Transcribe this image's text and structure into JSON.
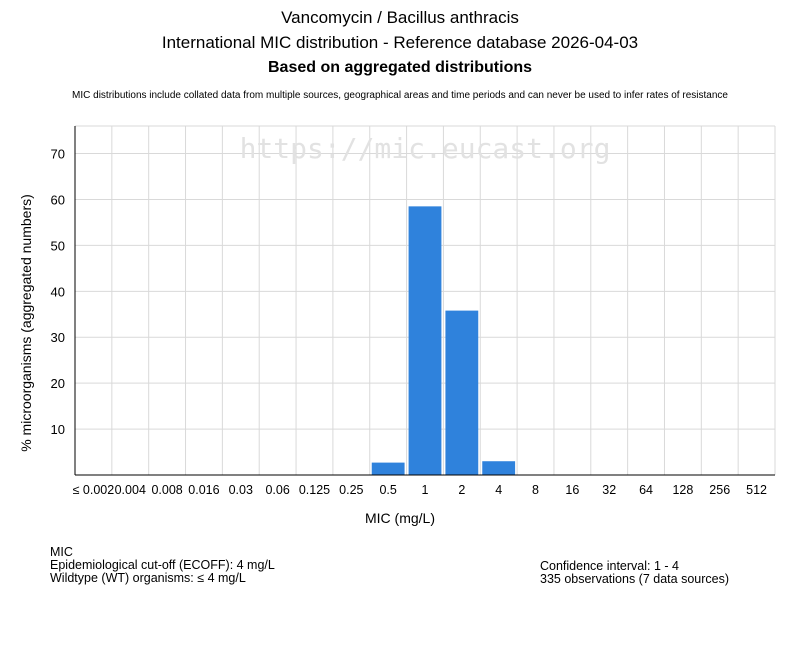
{
  "header": {
    "title": "Vancomycin / Bacillus anthracis",
    "subtitle": "International MIC distribution - Reference database 2026-04-03",
    "subtitle2": "Based on aggregated distributions",
    "disclaimer": "MIC distributions include collated data from multiple sources, geographical areas and time periods and can never be used to infer rates of resistance"
  },
  "watermark": "https://mic.eucast.org",
  "chart_data": {
    "type": "bar",
    "categories": [
      "≤ 0.002",
      "0.004",
      "0.008",
      "0.016",
      "0.03",
      "0.06",
      "0.125",
      "0.25",
      "0.5",
      "1",
      "2",
      "4",
      "8",
      "16",
      "32",
      "64",
      "128",
      "256",
      "512"
    ],
    "values": [
      0,
      0,
      0,
      0,
      0,
      0,
      0,
      0,
      2.7,
      58.5,
      35.8,
      3.0,
      0,
      0,
      0,
      0,
      0,
      0,
      0
    ],
    "xlabel": "MIC (mg/L)",
    "ylabel": "% microorganisms (aggregated numbers)",
    "ylim": [
      0,
      76
    ],
    "yticks": [
      10,
      20,
      30,
      40,
      50,
      60,
      70
    ],
    "bar_color": "#2f82dc",
    "grid": true
  },
  "footer": {
    "left": {
      "heading": "MIC",
      "ecoff": "Epidemiological cut-off (ECOFF): 4 mg/L",
      "wildtype": "Wildtype (WT) organisms: ≤ 4 mg/L"
    },
    "right": {
      "confidence": "Confidence interval: 1 - 4",
      "observations": "335 observations (7 data sources)"
    }
  }
}
